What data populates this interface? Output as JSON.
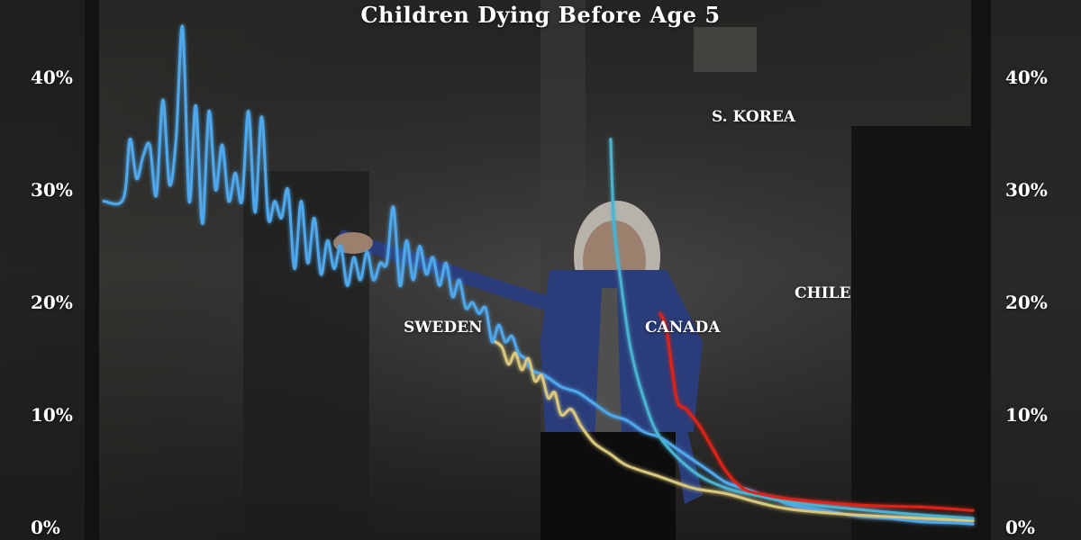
{
  "chart_data": {
    "type": "line",
    "title": "Children Dying Before Age 5",
    "ylim": [
      0,
      40
    ],
    "yticks": [
      "0%",
      "10%",
      "20%",
      "30%",
      "40%"
    ],
    "ytick_values": [
      0,
      10,
      20,
      30,
      40
    ],
    "grid": false,
    "colors": {
      "sweden": "#4fa8ec",
      "canada": "#d9c87c",
      "skorea": "#49b3d1",
      "chile": "#e02414"
    },
    "series": [
      {
        "name": "SWEDEN",
        "x": [
          1751,
          1757,
          1759,
          1761,
          1763,
          1765,
          1767,
          1769,
          1771,
          1773,
          1775,
          1777,
          1779,
          1781,
          1783,
          1785,
          1787,
          1789,
          1791,
          1793,
          1795,
          1797,
          1799,
          1801,
          1803,
          1805,
          1807,
          1809,
          1811,
          1813,
          1815,
          1817,
          1819,
          1821,
          1823,
          1825,
          1827,
          1829,
          1831,
          1833,
          1835,
          1837,
          1839,
          1841,
          1843,
          1845,
          1847,
          1849,
          1851,
          1853,
          1855,
          1857,
          1859,
          1861,
          1863,
          1865,
          1867,
          1869,
          1871,
          1873,
          1875,
          1877,
          1879,
          1881,
          1885,
          1890,
          1895,
          1900,
          1905,
          1910,
          1915,
          1920,
          1925,
          1930,
          1935,
          1940,
          1945,
          1950,
          1955,
          1960,
          1970,
          1980,
          1990,
          2000,
          2010,
          2015
        ],
        "values": [
          29.0,
          29.2,
          34.5,
          31.0,
          33.0,
          34.0,
          29.5,
          38.0,
          30.5,
          34.5,
          44.5,
          29.0,
          37.5,
          27.0,
          37.0,
          30.0,
          34.0,
          29.0,
          31.5,
          29.0,
          37.0,
          28.0,
          36.5,
          27.5,
          29.0,
          27.5,
          30.0,
          23.0,
          29.0,
          23.5,
          27.5,
          22.5,
          25.5,
          23.0,
          25.0,
          21.5,
          24.0,
          22.0,
          24.5,
          22.0,
          23.5,
          23.5,
          28.5,
          21.5,
          25.5,
          22.0,
          25.0,
          22.5,
          24.0,
          21.5,
          23.5,
          20.5,
          22.0,
          19.5,
          20.0,
          19.0,
          19.5,
          16.5,
          18.0,
          16.5,
          17.0,
          15.5,
          15.0,
          14.0,
          13.5,
          12.5,
          12.0,
          11.0,
          10.0,
          9.5,
          8.5,
          8.0,
          7.0,
          6.0,
          5.0,
          4.0,
          3.5,
          3.0,
          2.5,
          2.0,
          1.5,
          1.0,
          0.8,
          0.5,
          0.4,
          0.3
        ]
      },
      {
        "name": "CANADA",
        "x": [
          1870,
          1872,
          1874,
          1876,
          1878,
          1880,
          1882,
          1884,
          1886,
          1888,
          1890,
          1893,
          1896,
          1900,
          1905,
          1910,
          1920,
          1930,
          1940,
          1950,
          1960,
          1980,
          2000,
          2015
        ],
        "values": [
          16.5,
          16.0,
          14.5,
          15.5,
          14.0,
          15.0,
          13.0,
          13.5,
          11.5,
          12.0,
          10.0,
          10.5,
          9.0,
          7.5,
          6.5,
          5.5,
          4.5,
          3.5,
          3.0,
          2.2,
          1.6,
          1.1,
          0.8,
          0.6
        ]
      },
      {
        "name": "S. KOREA",
        "x": [
          1905,
          1906,
          1908,
          1911,
          1915,
          1920,
          1930,
          1940,
          1950,
          1960,
          1980,
          2000,
          2015
        ],
        "values": [
          34.5,
          27.0,
          22.0,
          16.0,
          11.5,
          8.0,
          5.0,
          3.5,
          2.8,
          2.2,
          1.6,
          1.1,
          0.8
        ]
      },
      {
        "name": "CHILE",
        "x": [
          1920,
          1922,
          1925,
          1928,
          1932,
          1936,
          1940,
          1945,
          1950,
          1960,
          1980,
          2000,
          2015
        ],
        "values": [
          19.0,
          17.5,
          11.5,
          10.5,
          9.0,
          7.0,
          5.0,
          3.5,
          3.0,
          2.5,
          2.0,
          1.8,
          1.5
        ]
      }
    ]
  }
}
